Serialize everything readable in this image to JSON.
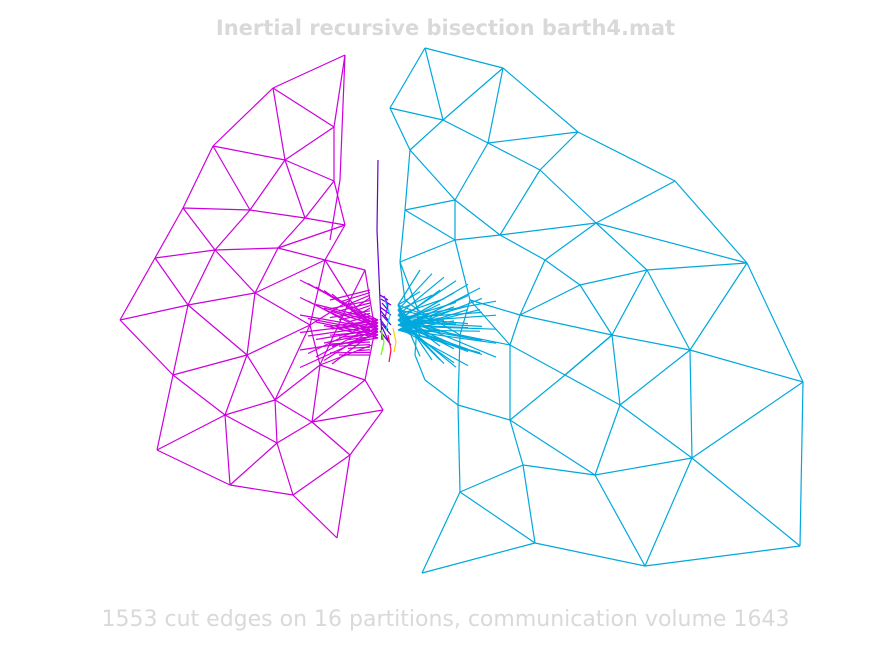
{
  "title": "Inertial recursive bisection barth4.mat",
  "caption": "1553 cut edges on 16 partitions, communication volume 1643",
  "colors": {
    "background": "#ffffff",
    "text": "#d9d9d9",
    "partitions": [
      "#cc00dd",
      "#00a8dd",
      "#6600cc",
      "#66ff00",
      "#ff0066",
      "#ffcc00",
      "#00ccff",
      "#9900ff"
    ]
  }
}
